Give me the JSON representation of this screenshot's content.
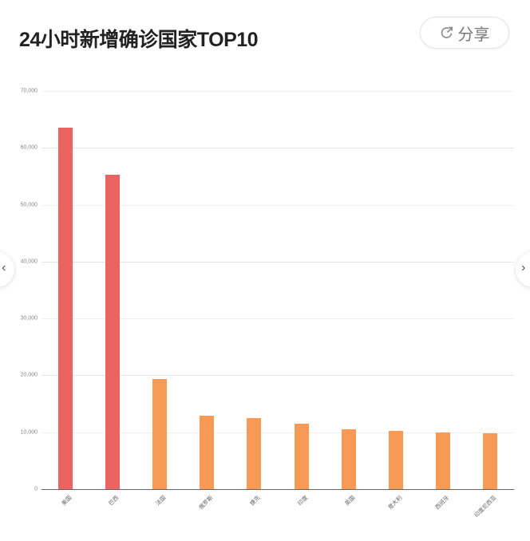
{
  "header": {
    "title": "24小时新增确诊国家TOP10",
    "share_label": "分享",
    "share_icon": "share-icon"
  },
  "nav": {
    "prev_icon": "chevron-left-icon",
    "next_icon": "chevron-right-icon",
    "prev_glyph": "‹",
    "next_glyph": "›"
  },
  "colors": {
    "top_bar": "#ec6461",
    "other_bar": "#f79a55"
  },
  "y_ticks": [
    "0",
    "10,000",
    "20,000",
    "30,000",
    "40,000",
    "50,000",
    "60,000",
    "70,000"
  ],
  "chart_data": {
    "type": "bar",
    "title": "24小时新增确诊国家TOP10",
    "xlabel": "",
    "ylabel": "",
    "categories": [
      "美国",
      "巴西",
      "法国",
      "俄罗斯",
      "捷克",
      "印度",
      "英国",
      "意大利",
      "西班牙",
      "印度尼西亚"
    ],
    "values": [
      63500,
      55300,
      19300,
      12900,
      12500,
      11500,
      10500,
      10200,
      9900,
      9800
    ],
    "ylim": [
      0,
      70000
    ],
    "yticks": [
      0,
      10000,
      20000,
      30000,
      40000,
      50000,
      60000,
      70000
    ],
    "grid": true,
    "legend": null,
    "bar_colors": [
      "#ec6461",
      "#ec6461",
      "#f79a55",
      "#f79a55",
      "#f79a55",
      "#f79a55",
      "#f79a55",
      "#f79a55",
      "#f79a55",
      "#f79a55"
    ]
  }
}
